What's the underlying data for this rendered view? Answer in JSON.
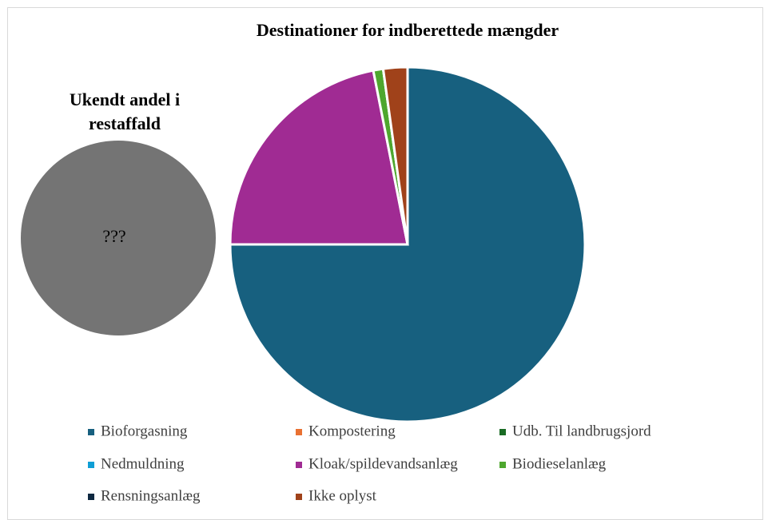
{
  "chart_data": {
    "type": "pie",
    "title": "Destinationer for indberettede mængder",
    "categories": [
      "Bioforgasning",
      "Kompostering",
      "Udb. Til landbrugsjord",
      "Nedmuldning",
      "Kloak/spildevandsanlæg",
      "Biodieselanlæg",
      "Rensningsanlæg",
      "Ikke oplyst"
    ],
    "values": [
      75,
      0,
      0,
      0,
      21.9,
      0.9,
      0,
      2.2
    ],
    "colors": [
      "#17607f",
      "#e97132",
      "#196b24",
      "#0f9ed5",
      "#a02b93",
      "#4ea72e",
      "#0e2841",
      "#a0421a"
    ],
    "legend": "bottom",
    "annotation_title_lines": [
      "Ukendt andel i",
      "restaffald"
    ],
    "annotation_label": "???"
  }
}
